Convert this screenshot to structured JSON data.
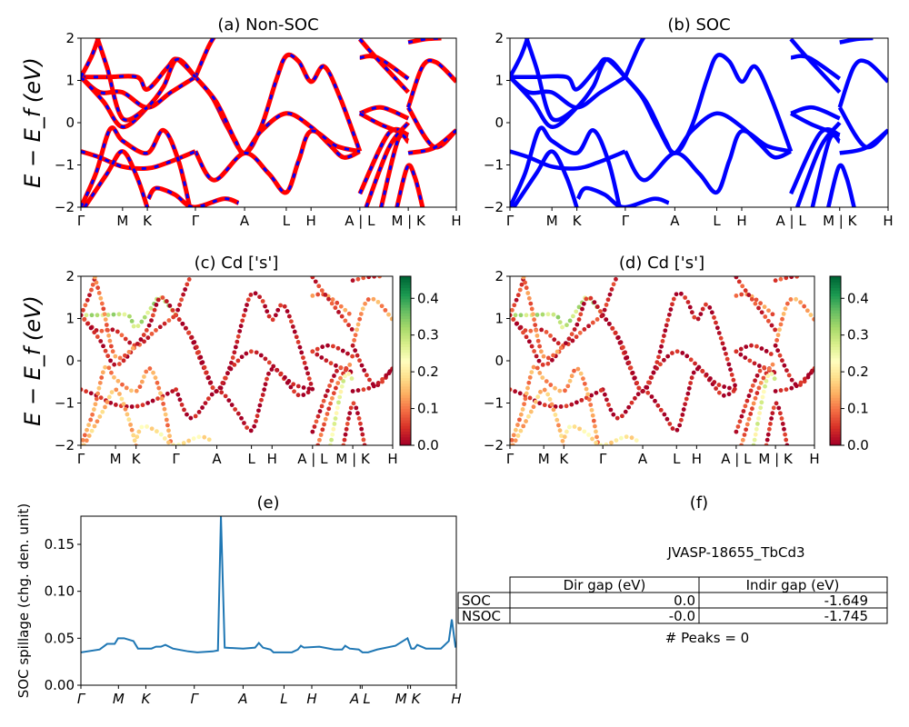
{
  "chart_data": [
    {
      "id": "a",
      "type": "line",
      "title": "(a) Non-SOC",
      "ylabel": "E − E_f (eV)",
      "ylim": [
        -2,
        2
      ],
      "yticks": [
        "2",
        "1",
        "0",
        "−1",
        "−2"
      ],
      "xticks": [
        {
          "k": 0,
          "label": "Γ"
        },
        {
          "k": 0.111,
          "label": "M"
        },
        {
          "k": 0.177,
          "label": "K"
        },
        {
          "k": 0.305,
          "label": "Γ"
        },
        {
          "k": 0.436,
          "label": "A"
        },
        {
          "k": 0.547,
          "label": "L"
        },
        {
          "k": 0.613,
          "label": "H"
        },
        {
          "k": 0.743,
          "label": "A | L"
        },
        {
          "k": 0.872,
          "label": "M | K"
        },
        {
          "k": 1,
          "label": "H"
        }
      ],
      "style": "red solid with blue dashes"
    },
    {
      "id": "b",
      "type": "line",
      "title": "(b) SOC",
      "ylim": [
        -2,
        2
      ],
      "style": "blue solid"
    },
    {
      "id": "c",
      "type": "scatter",
      "title": "(c)  Cd ['s']",
      "ylabel": "E − E_f (eV)",
      "ylim": [
        -2,
        2
      ],
      "colorbar": {
        "range": [
          0,
          0.46
        ],
        "ticks": [
          "0.0",
          "0.1",
          "0.2",
          "0.3",
          "0.4"
        ],
        "colormap": "RdYlGn"
      }
    },
    {
      "id": "d",
      "type": "scatter",
      "title": "(d) Cd ['s']",
      "ylim": [
        -2,
        2
      ],
      "colorbar": {
        "range": [
          0,
          0.46
        ],
        "ticks": [
          "0.0",
          "0.1",
          "0.2",
          "0.3",
          "0.4"
        ],
        "colormap": "RdYlGn"
      }
    },
    {
      "id": "e",
      "type": "line",
      "title": "(e)",
      "ylabel": "SOC spillage (chg. den. unit)",
      "ylim": [
        0,
        0.18
      ],
      "yticks": [
        "0.00",
        "0.05",
        "0.10",
        "0.15"
      ],
      "xticks": [
        {
          "k": 0,
          "label": "Γ"
        },
        {
          "k": 0.1,
          "label": "M"
        },
        {
          "k": 0.173,
          "label": "K"
        },
        {
          "k": 0.302,
          "label": "Γ"
        },
        {
          "k": 0.432,
          "label": "A"
        },
        {
          "k": 0.541,
          "label": "L"
        },
        {
          "k": 0.615,
          "label": "H"
        },
        {
          "k": 0.744,
          "label": "A"
        },
        {
          "k": 0.749,
          "label": "L"
        },
        {
          "k": 0.871,
          "label": "M"
        },
        {
          "k": 0.878,
          "label": "K"
        },
        {
          "k": 1,
          "label": "H"
        }
      ],
      "color": "#1f77b4",
      "points": [
        [
          0,
          0.035
        ],
        [
          0.05,
          0.038
        ],
        [
          0.07,
          0.044
        ],
        [
          0.09,
          0.044
        ],
        [
          0.099,
          0.05
        ],
        [
          0.115,
          0.05
        ],
        [
          0.14,
          0.047
        ],
        [
          0.152,
          0.039
        ],
        [
          0.188,
          0.039
        ],
        [
          0.2,
          0.041
        ],
        [
          0.213,
          0.041
        ],
        [
          0.225,
          0.043
        ],
        [
          0.245,
          0.039
        ],
        [
          0.286,
          0.036
        ],
        [
          0.31,
          0.035
        ],
        [
          0.351,
          0.036
        ],
        [
          0.365,
          0.037
        ],
        [
          0.373,
          0.18
        ],
        [
          0.383,
          0.04
        ],
        [
          0.432,
          0.039
        ],
        [
          0.464,
          0.04
        ],
        [
          0.474,
          0.045
        ],
        [
          0.485,
          0.04
        ],
        [
          0.505,
          0.038
        ],
        [
          0.513,
          0.035
        ],
        [
          0.562,
          0.035
        ],
        [
          0.578,
          0.038
        ],
        [
          0.586,
          0.042
        ],
        [
          0.594,
          0.04
        ],
        [
          0.635,
          0.041
        ],
        [
          0.675,
          0.038
        ],
        [
          0.696,
          0.038
        ],
        [
          0.704,
          0.042
        ],
        [
          0.716,
          0.039
        ],
        [
          0.74,
          0.038
        ],
        [
          0.75,
          0.035
        ],
        [
          0.765,
          0.035
        ],
        [
          0.789,
          0.038
        ],
        [
          0.838,
          0.042
        ],
        [
          0.87,
          0.05
        ],
        [
          0.88,
          0.039
        ],
        [
          0.888,
          0.039
        ],
        [
          0.896,
          0.043
        ],
        [
          0.919,
          0.039
        ],
        [
          0.959,
          0.039
        ],
        [
          0.98,
          0.047
        ],
        [
          0.988,
          0.07
        ],
        [
          0.998,
          0.04
        ]
      ]
    },
    {
      "id": "f",
      "type": "table",
      "title": "(f)",
      "subtitle": "JVASP-18655_TbCd3",
      "columns": [
        "Dir gap (eV)",
        "Indir gap (eV)"
      ],
      "rows": [
        {
          "label": "SOC",
          "values": [
            "0.0",
            "-1.649"
          ]
        },
        {
          "label": "NSOC",
          "values": [
            "-0.0",
            "-1.745"
          ]
        }
      ],
      "note": "# Peaks = 0"
    }
  ],
  "bands": [
    {
      "w": 0.02,
      "pts": [
        [
          0.305,
          1.08
        ],
        [
          0.35,
          0.6
        ],
        [
          0.39,
          -0.1
        ],
        [
          0.436,
          -0.72
        ],
        [
          0.48,
          -0.1
        ],
        [
          0.52,
          1.0
        ],
        [
          0.547,
          1.58
        ],
        [
          0.58,
          1.45
        ],
        [
          0.613,
          0.97
        ],
        [
          0.648,
          1.33
        ],
        [
          0.69,
          0.6
        ],
        [
          0.743,
          -0.68
        ]
      ]
    },
    {
      "w": 0.02,
      "pts": [
        [
          0.305,
          1.08
        ],
        [
          0.36,
          0.5
        ],
        [
          0.41,
          -0.4
        ],
        [
          0.436,
          -0.72
        ],
        [
          0.48,
          -0.2
        ],
        [
          0.547,
          0.22
        ],
        [
          0.613,
          -0.1
        ],
        [
          0.66,
          -0.5
        ],
        [
          0.7,
          -0.82
        ],
        [
          0.743,
          -0.68
        ]
      ]
    },
    {
      "w": 0.01,
      "pts": [
        [
          0.305,
          -0.68
        ],
        [
          0.355,
          -1.36
        ],
        [
          0.436,
          -0.72
        ],
        [
          0.5,
          -1.2
        ],
        [
          0.547,
          -1.65
        ],
        [
          0.58,
          -0.9
        ],
        [
          0.613,
          -0.2
        ],
        [
          0.68,
          -0.55
        ],
        [
          0.743,
          -0.68
        ]
      ]
    },
    {
      "w": 0.03,
      "pts": [
        [
          0.305,
          1.08
        ],
        [
          0.34,
          1.8
        ],
        [
          0.36,
          2.1
        ]
      ]
    },
    {
      "w": 0.3,
      "pts": [
        [
          0,
          1.08
        ],
        [
          0.07,
          1.08
        ],
        [
          0.15,
          1.08
        ],
        [
          0.177,
          0.79
        ],
        [
          0.23,
          1.3
        ],
        [
          0.256,
          1.5
        ],
        [
          0.305,
          1.08
        ]
      ]
    },
    {
      "w": 0.05,
      "pts": [
        [
          0,
          1.08
        ],
        [
          0.05,
          0.72
        ],
        [
          0.11,
          0.72
        ],
        [
          0.177,
          0.36
        ],
        [
          0.24,
          0.72
        ],
        [
          0.305,
          1.08
        ]
      ]
    },
    {
      "w": 0.03,
      "pts": [
        [
          0,
          1.08
        ],
        [
          0.06,
          0.5
        ],
        [
          0.111,
          -0.1
        ],
        [
          0.177,
          0.36
        ],
        [
          0.22,
          0.85
        ],
        [
          0.256,
          1.5
        ],
        [
          0.305,
          1.08
        ]
      ]
    },
    {
      "w": 0.02,
      "pts": [
        [
          0,
          -0.68
        ],
        [
          0.05,
          -0.82
        ],
        [
          0.111,
          -1.04
        ],
        [
          0.177,
          -1.08
        ],
        [
          0.23,
          -0.95
        ],
        [
          0.305,
          -0.68
        ]
      ]
    },
    {
      "w": 0.12,
      "pts": [
        [
          0,
          -2
        ],
        [
          0.04,
          -1.2
        ],
        [
          0.078,
          -0.15
        ],
        [
          0.111,
          -0.43
        ],
        [
          0.177,
          -0.72
        ],
        [
          0.22,
          -0.18
        ],
        [
          0.26,
          -0.9
        ],
        [
          0.29,
          -2
        ]
      ]
    },
    {
      "w": 0.15,
      "pts": [
        [
          0.01,
          -2
        ],
        [
          0.07,
          -1.2
        ],
        [
          0.111,
          -0.68
        ],
        [
          0.15,
          -1.3
        ],
        [
          0.18,
          -2.1
        ]
      ]
    },
    {
      "w": 0.2,
      "pts": [
        [
          0.18,
          -1.8
        ],
        [
          0.2,
          -1.55
        ],
        [
          0.25,
          -1.7
        ],
        [
          0.3,
          -2.0
        ],
        [
          0.38,
          -1.8
        ],
        [
          0.42,
          -1.9
        ]
      ]
    },
    {
      "w": 0.05,
      "pts": [
        [
          0,
          1.08
        ],
        [
          0.03,
          1.6
        ],
        [
          0.05,
          2.1
        ]
      ]
    },
    {
      "w": 0.1,
      "pts": [
        [
          0.04,
          2.1
        ],
        [
          0.07,
          1.3
        ],
        [
          0.111,
          0.1
        ],
        [
          0.177,
          0.36
        ]
      ]
    },
    {
      "w": 0.02,
      "pts": [
        [
          0.743,
          0.22
        ],
        [
          0.8,
          0.36
        ],
        [
          0.872,
          0.1
        ]
      ]
    },
    {
      "w": 0.02,
      "pts": [
        [
          0.743,
          0.22
        ],
        [
          0.8,
          -0.05
        ],
        [
          0.872,
          -0.29
        ]
      ]
    },
    {
      "w": 0.1,
      "pts": [
        [
          0.743,
          1.54
        ],
        [
          0.79,
          1.54
        ],
        [
          0.872,
          1.04
        ]
      ]
    },
    {
      "w": 0.05,
      "pts": [
        [
          0.743,
          1.98
        ],
        [
          0.78,
          1.6
        ],
        [
          0.872,
          0.72
        ]
      ]
    },
    {
      "w": 0.04,
      "pts": [
        [
          0.743,
          -1.68
        ],
        [
          0.82,
          -0.25
        ],
        [
          0.872,
          -0.29
        ]
      ]
    },
    {
      "w": 0.08,
      "pts": [
        [
          0.76,
          -2
        ],
        [
          0.82,
          -0.6
        ],
        [
          0.872,
          0
        ]
      ]
    },
    {
      "w": 0.25,
      "pts": [
        [
          0.8,
          -2
        ],
        [
          0.845,
          -0.4
        ],
        [
          0.872,
          -0.45
        ]
      ]
    },
    {
      "w": 0.03,
      "pts": [
        [
          0.842,
          -2
        ],
        [
          0.87,
          -1.04
        ],
        [
          0.89,
          -1.3
        ],
        [
          0.91,
          -2
        ]
      ]
    },
    {
      "w": 0.12,
      "pts": [
        [
          0.872,
          0.36
        ],
        [
          0.91,
          1.33
        ],
        [
          0.946,
          1.43
        ],
        [
          1,
          0.97
        ]
      ]
    },
    {
      "w": 0.02,
      "pts": [
        [
          0.872,
          0.36
        ],
        [
          0.94,
          -0.57
        ],
        [
          1,
          -0.18
        ]
      ]
    },
    {
      "w": 0.02,
      "pts": [
        [
          0.872,
          -0.72
        ],
        [
          0.94,
          -0.6
        ],
        [
          1,
          -0.18
        ]
      ]
    },
    {
      "w": 0.05,
      "pts": [
        [
          0.872,
          1.9
        ],
        [
          0.92,
          1.98
        ],
        [
          0.96,
          2.0
        ]
      ]
    }
  ],
  "colors": {
    "nonsoc_solid": "#ff0000",
    "nonsoc_dash": "#0000ff",
    "soc": "#0000ff",
    "spillage": "#1f77b4"
  }
}
